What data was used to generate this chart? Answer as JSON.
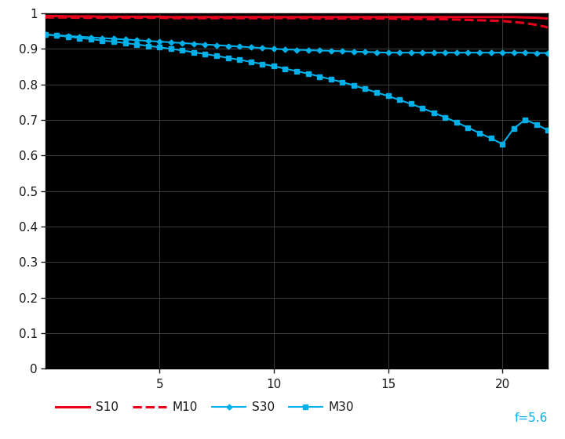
{
  "background_color": "#ffffff",
  "plot_bg_color": "#000000",
  "text_color": "#1a1a1a",
  "grid_color": "#444444",
  "axis_color": "#000000",
  "spine_color": "#000000",
  "xlim": [
    0,
    22
  ],
  "ylim": [
    0,
    1.0
  ],
  "yticks": [
    0,
    0.1,
    0.2,
    0.3,
    0.4,
    0.5,
    0.6,
    0.7,
    0.8,
    0.9,
    1
  ],
  "xticks": [
    5,
    10,
    15,
    20
  ],
  "f_label": "f=5.6",
  "f_label_color": "#00b0e8",
  "series": {
    "S10": {
      "x": [
        0,
        0.5,
        1,
        1.5,
        2,
        2.5,
        3,
        3.5,
        4,
        4.5,
        5,
        5.5,
        6,
        6.5,
        7,
        7.5,
        8,
        8.5,
        9,
        9.5,
        10,
        10.5,
        11,
        11.5,
        12,
        12.5,
        13,
        13.5,
        14,
        14.5,
        15,
        15.5,
        16,
        16.5,
        17,
        17.5,
        18,
        18.5,
        19,
        19.5,
        20,
        20.5,
        21,
        21.5,
        22
      ],
      "y": [
        0.992,
        0.992,
        0.991,
        0.991,
        0.991,
        0.99,
        0.99,
        0.99,
        0.99,
        0.99,
        0.99,
        0.989,
        0.989,
        0.989,
        0.989,
        0.989,
        0.989,
        0.989,
        0.989,
        0.989,
        0.989,
        0.989,
        0.989,
        0.989,
        0.989,
        0.989,
        0.989,
        0.989,
        0.989,
        0.989,
        0.989,
        0.989,
        0.989,
        0.989,
        0.989,
        0.989,
        0.989,
        0.989,
        0.989,
        0.989,
        0.989,
        0.989,
        0.988,
        0.987,
        0.985
      ],
      "color": "#e8001c",
      "linestyle": "solid",
      "linewidth": 2.2,
      "marker": null
    },
    "M10": {
      "x": [
        0,
        0.5,
        1,
        1.5,
        2,
        2.5,
        3,
        3.5,
        4,
        4.5,
        5,
        5.5,
        6,
        6.5,
        7,
        7.5,
        8,
        8.5,
        9,
        9.5,
        10,
        10.5,
        11,
        11.5,
        12,
        12.5,
        13,
        13.5,
        14,
        14.5,
        15,
        15.5,
        16,
        16.5,
        17,
        17.5,
        18,
        18.5,
        19,
        19.5,
        20,
        20.5,
        21,
        21.5,
        22
      ],
      "y": [
        0.988,
        0.988,
        0.988,
        0.987,
        0.987,
        0.987,
        0.987,
        0.987,
        0.987,
        0.987,
        0.987,
        0.986,
        0.986,
        0.986,
        0.986,
        0.986,
        0.986,
        0.986,
        0.986,
        0.986,
        0.986,
        0.986,
        0.986,
        0.986,
        0.985,
        0.985,
        0.985,
        0.985,
        0.985,
        0.985,
        0.985,
        0.984,
        0.984,
        0.984,
        0.983,
        0.983,
        0.982,
        0.981,
        0.98,
        0.979,
        0.978,
        0.975,
        0.972,
        0.967,
        0.96
      ],
      "color": "#e8001c",
      "linestyle": "dashed",
      "linewidth": 2.2,
      "marker": null
    },
    "S30": {
      "x": [
        0,
        0.5,
        1,
        1.5,
        2,
        2.5,
        3,
        3.5,
        4,
        4.5,
        5,
        5.5,
        6,
        6.5,
        7,
        7.5,
        8,
        8.5,
        9,
        9.5,
        10,
        10.5,
        11,
        11.5,
        12,
        12.5,
        13,
        13.5,
        14,
        14.5,
        15,
        15.5,
        16,
        16.5,
        17,
        17.5,
        18,
        18.5,
        19,
        19.5,
        20,
        20.5,
        21,
        21.5,
        22
      ],
      "y": [
        0.94,
        0.938,
        0.936,
        0.934,
        0.932,
        0.93,
        0.928,
        0.926,
        0.924,
        0.922,
        0.92,
        0.918,
        0.916,
        0.914,
        0.912,
        0.91,
        0.908,
        0.906,
        0.904,
        0.902,
        0.9,
        0.898,
        0.897,
        0.896,
        0.895,
        0.894,
        0.893,
        0.892,
        0.891,
        0.89,
        0.889,
        0.889,
        0.889,
        0.889,
        0.889,
        0.889,
        0.889,
        0.889,
        0.889,
        0.889,
        0.889,
        0.889,
        0.889,
        0.888,
        0.888
      ],
      "color": "#00b0e8",
      "linestyle": "solid",
      "linewidth": 1.5,
      "marker": "D",
      "markersize": 3.5,
      "markevery": 1
    },
    "M30": {
      "x": [
        0,
        0.5,
        1,
        1.5,
        2,
        2.5,
        3,
        3.5,
        4,
        4.5,
        5,
        5.5,
        6,
        6.5,
        7,
        7.5,
        8,
        8.5,
        9,
        9.5,
        10,
        10.5,
        11,
        11.5,
        12,
        12.5,
        13,
        13.5,
        14,
        14.5,
        15,
        15.5,
        16,
        16.5,
        17,
        17.5,
        18,
        18.5,
        19,
        19.5,
        20,
        20.5,
        21,
        21.5,
        22
      ],
      "y": [
        0.94,
        0.937,
        0.934,
        0.93,
        0.927,
        0.923,
        0.92,
        0.916,
        0.912,
        0.908,
        0.904,
        0.9,
        0.895,
        0.89,
        0.885,
        0.88,
        0.874,
        0.869,
        0.863,
        0.857,
        0.851,
        0.844,
        0.837,
        0.83,
        0.822,
        0.814,
        0.806,
        0.797,
        0.787,
        0.777,
        0.767,
        0.756,
        0.745,
        0.733,
        0.72,
        0.707,
        0.693,
        0.678,
        0.663,
        0.648,
        0.632,
        0.676,
        0.7,
        0.687,
        0.67
      ],
      "color": "#00b0e8",
      "linestyle": "solid",
      "linewidth": 1.5,
      "marker": "s",
      "markersize": 4,
      "markevery": 1
    }
  },
  "legend": {
    "S10": {
      "linestyle": "solid",
      "color": "#e8001c",
      "linewidth": 2.2,
      "marker": null
    },
    "M10": {
      "linestyle": "dashed",
      "color": "#e8001c",
      "linewidth": 2.2,
      "marker": null
    },
    "S30": {
      "linestyle": "solid",
      "color": "#00b0e8",
      "linewidth": 1.5,
      "marker": "D",
      "markersize": 3.5
    },
    "M30": {
      "linestyle": "solid",
      "color": "#00b0e8",
      "linewidth": 1.5,
      "marker": "s",
      "markersize": 4
    }
  }
}
